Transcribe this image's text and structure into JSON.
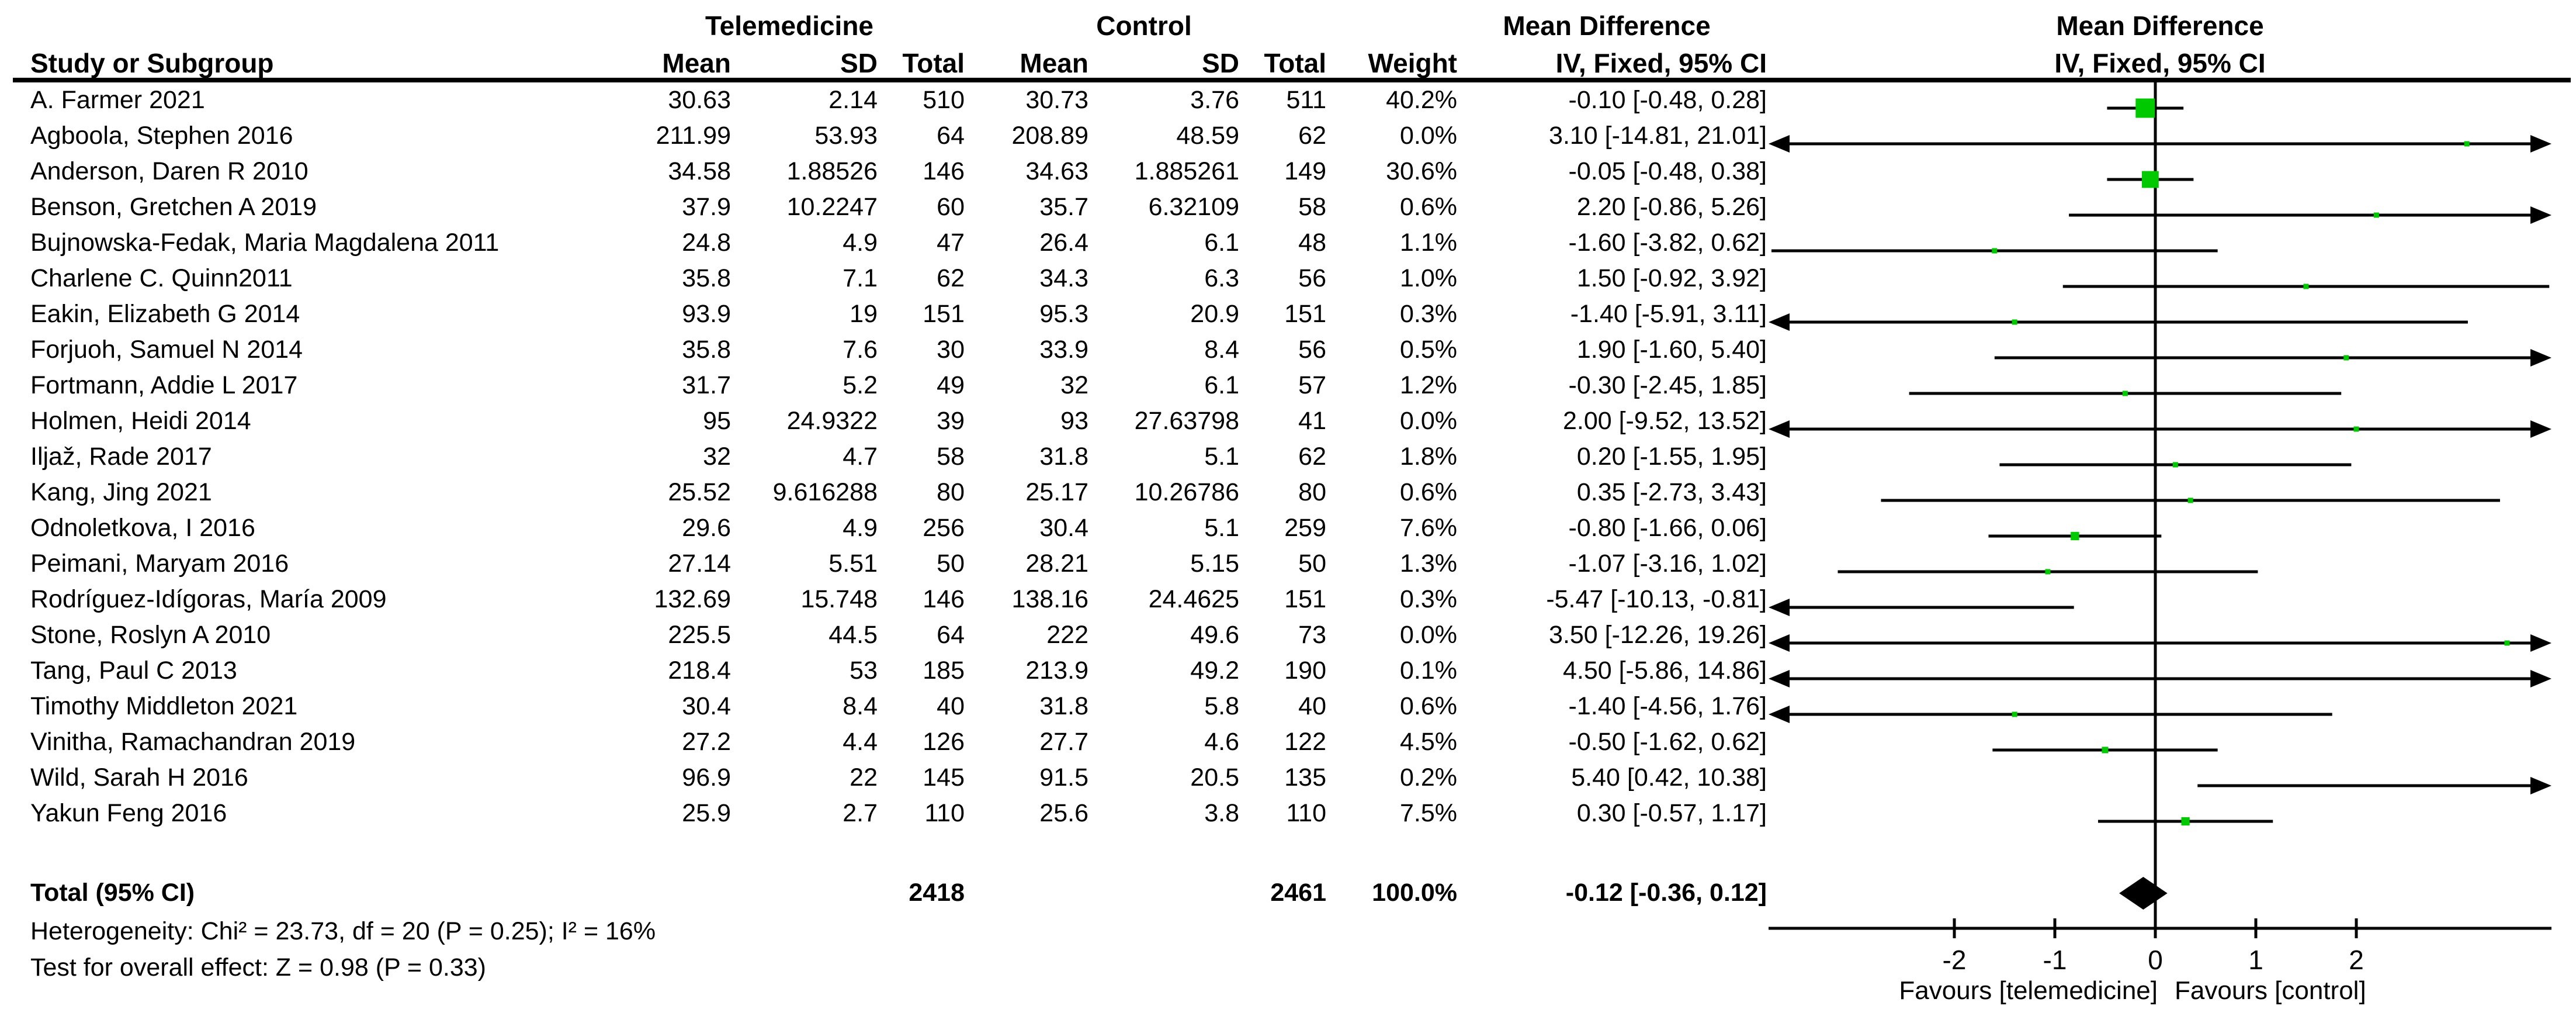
{
  "chart_data": {
    "type": "forest",
    "title": {
      "left_group": "Telemedicine",
      "right_group": "Control",
      "effect_label": "Mean Difference",
      "effect_model": "IV, Fixed, 95% CI"
    },
    "columns": [
      "Study or Subgroup",
      "Mean",
      "SD",
      "Total",
      "Mean",
      "SD",
      "Total",
      "Weight",
      "IV, Fixed, 95% CI",
      "IV, Fixed, 95% CI"
    ],
    "studies": [
      {
        "name": "A. Farmer 2021",
        "mean1": "30.63",
        "sd1": "2.14",
        "total1": "510",
        "mean2": "30.73",
        "sd2": "3.76",
        "total2": "511",
        "weight": "40.2%",
        "w": 40.2,
        "md": -0.1,
        "lo": -0.48,
        "hi": 0.28,
        "ci_text": "-0.10 [-0.48, 0.28]"
      },
      {
        "name": "Agboola, Stephen 2016",
        "mean1": "211.99",
        "sd1": "53.93",
        "total1": "64",
        "mean2": "208.89",
        "sd2": "48.59",
        "total2": "62",
        "weight": "0.0%",
        "w": 0.0,
        "md": 3.1,
        "lo": -14.81,
        "hi": 21.01,
        "ci_text": "3.10 [-14.81, 21.01]"
      },
      {
        "name": "Anderson, Daren R 2010",
        "mean1": "34.58",
        "sd1": "1.88526",
        "total1": "146",
        "mean2": "34.63",
        "sd2": "1.885261",
        "total2": "149",
        "weight": "30.6%",
        "w": 30.6,
        "md": -0.05,
        "lo": -0.48,
        "hi": 0.38,
        "ci_text": "-0.05 [-0.48, 0.38]"
      },
      {
        "name": "Benson, Gretchen A 2019",
        "mean1": "37.9",
        "sd1": "10.2247",
        "total1": "60",
        "mean2": "35.7",
        "sd2": "6.32109",
        "total2": "58",
        "weight": "0.6%",
        "w": 0.6,
        "md": 2.2,
        "lo": -0.86,
        "hi": 5.26,
        "ci_text": "2.20 [-0.86, 5.26]"
      },
      {
        "name": "Bujnowska-Fedak, Maria Magdalena 2011",
        "mean1": "24.8",
        "sd1": "4.9",
        "total1": "47",
        "mean2": "26.4",
        "sd2": "6.1",
        "total2": "48",
        "weight": "1.1%",
        "w": 1.1,
        "md": -1.6,
        "lo": -3.82,
        "hi": 0.62,
        "ci_text": "-1.60 [-3.82, 0.62]"
      },
      {
        "name": "Charlene C. Quinn2011",
        "mean1": "35.8",
        "sd1": "7.1",
        "total1": "62",
        "mean2": "34.3",
        "sd2": "6.3",
        "total2": "56",
        "weight": "1.0%",
        "w": 1.0,
        "md": 1.5,
        "lo": -0.92,
        "hi": 3.92,
        "ci_text": "1.50 [-0.92, 3.92]"
      },
      {
        "name": "Eakin, Elizabeth G 2014",
        "mean1": "93.9",
        "sd1": "19",
        "total1": "151",
        "mean2": "95.3",
        "sd2": "20.9",
        "total2": "151",
        "weight": "0.3%",
        "w": 0.3,
        "md": -1.4,
        "lo": -5.91,
        "hi": 3.11,
        "ci_text": "-1.40 [-5.91, 3.11]"
      },
      {
        "name": "Forjuoh, Samuel N 2014",
        "mean1": "35.8",
        "sd1": "7.6",
        "total1": "30",
        "mean2": "33.9",
        "sd2": "8.4",
        "total2": "56",
        "weight": "0.5%",
        "w": 0.5,
        "md": 1.9,
        "lo": -1.6,
        "hi": 5.4,
        "ci_text": "1.90 [-1.60, 5.40]"
      },
      {
        "name": "Fortmann, Addie L 2017",
        "mean1": "31.7",
        "sd1": "5.2",
        "total1": "49",
        "mean2": "32",
        "sd2": "6.1",
        "total2": "57",
        "weight": "1.2%",
        "w": 1.2,
        "md": -0.3,
        "lo": -2.45,
        "hi": 1.85,
        "ci_text": "-0.30 [-2.45, 1.85]"
      },
      {
        "name": "Holmen, Heidi 2014",
        "mean1": "95",
        "sd1": "24.9322",
        "total1": "39",
        "mean2": "93",
        "sd2": "27.63798",
        "total2": "41",
        "weight": "0.0%",
        "w": 0.0,
        "md": 2.0,
        "lo": -9.52,
        "hi": 13.52,
        "ci_text": "2.00 [-9.52, 13.52]"
      },
      {
        "name": "Iljaž, Rade 2017",
        "mean1": "32",
        "sd1": "4.7",
        "total1": "58",
        "mean2": "31.8",
        "sd2": "5.1",
        "total2": "62",
        "weight": "1.8%",
        "w": 1.8,
        "md": 0.2,
        "lo": -1.55,
        "hi": 1.95,
        "ci_text": "0.20 [-1.55, 1.95]"
      },
      {
        "name": "Kang, Jing 2021",
        "mean1": "25.52",
        "sd1": "9.616288",
        "total1": "80",
        "mean2": "25.17",
        "sd2": "10.26786",
        "total2": "80",
        "weight": "0.6%",
        "w": 0.6,
        "md": 0.35,
        "lo": -2.73,
        "hi": 3.43,
        "ci_text": "0.35 [-2.73, 3.43]"
      },
      {
        "name": "Odnoletkova, I 2016",
        "mean1": "29.6",
        "sd1": "4.9",
        "total1": "256",
        "mean2": "30.4",
        "sd2": "5.1",
        "total2": "259",
        "weight": "7.6%",
        "w": 7.6,
        "md": -0.8,
        "lo": -1.66,
        "hi": 0.06,
        "ci_text": "-0.80 [-1.66, 0.06]"
      },
      {
        "name": "Peimani, Maryam 2016",
        "mean1": "27.14",
        "sd1": "5.51",
        "total1": "50",
        "mean2": "28.21",
        "sd2": "5.15",
        "total2": "50",
        "weight": "1.3%",
        "w": 1.3,
        "md": -1.07,
        "lo": -3.16,
        "hi": 1.02,
        "ci_text": "-1.07 [-3.16, 1.02]"
      },
      {
        "name": "Rodríguez-Idígoras, María 2009",
        "mean1": "132.69",
        "sd1": "15.748",
        "total1": "146",
        "mean2": "138.16",
        "sd2": "24.4625",
        "total2": "151",
        "weight": "0.3%",
        "w": 0.3,
        "md": -5.47,
        "lo": -10.13,
        "hi": -0.81,
        "ci_text": "-5.47 [-10.13, -0.81]"
      },
      {
        "name": "Stone, Roslyn A 2010",
        "mean1": "225.5",
        "sd1": "44.5",
        "total1": "64",
        "mean2": "222",
        "sd2": "49.6",
        "total2": "73",
        "weight": "0.0%",
        "w": 0.0,
        "md": 3.5,
        "lo": -12.26,
        "hi": 19.26,
        "ci_text": "3.50 [-12.26, 19.26]"
      },
      {
        "name": "Tang, Paul C 2013",
        "mean1": "218.4",
        "sd1": "53",
        "total1": "185",
        "mean2": "213.9",
        "sd2": "49.2",
        "total2": "190",
        "weight": "0.1%",
        "w": 0.1,
        "md": 4.5,
        "lo": -5.86,
        "hi": 14.86,
        "ci_text": "4.50 [-5.86, 14.86]"
      },
      {
        "name": "Timothy Middleton 2021",
        "mean1": "30.4",
        "sd1": "8.4",
        "total1": "40",
        "mean2": "31.8",
        "sd2": "5.8",
        "total2": "40",
        "weight": "0.6%",
        "w": 0.6,
        "md": -1.4,
        "lo": -4.56,
        "hi": 1.76,
        "ci_text": "-1.40 [-4.56, 1.76]"
      },
      {
        "name": "Vinitha, Ramachandran 2019",
        "mean1": "27.2",
        "sd1": "4.4",
        "total1": "126",
        "mean2": "27.7",
        "sd2": "4.6",
        "total2": "122",
        "weight": "4.5%",
        "w": 4.5,
        "md": -0.5,
        "lo": -1.62,
        "hi": 0.62,
        "ci_text": "-0.50 [-1.62, 0.62]"
      },
      {
        "name": "Wild, Sarah H 2016",
        "mean1": "96.9",
        "sd1": "22",
        "total1": "145",
        "mean2": "91.5",
        "sd2": "20.5",
        "total2": "135",
        "weight": "0.2%",
        "w": 0.2,
        "md": 5.4,
        "lo": 0.42,
        "hi": 10.38,
        "ci_text": "5.40 [0.42, 10.38]"
      },
      {
        "name": "Yakun Feng 2016",
        "mean1": "25.9",
        "sd1": "2.7",
        "total1": "110",
        "mean2": "25.6",
        "sd2": "3.8",
        "total2": "110",
        "weight": "7.5%",
        "w": 7.5,
        "md": 0.3,
        "lo": -0.57,
        "hi": 1.17,
        "ci_text": "0.30 [-0.57, 1.17]"
      }
    ],
    "total": {
      "label": "Total (95% CI)",
      "t_total": "2418",
      "c_total": "2461",
      "weight": "100.0%",
      "md": -0.12,
      "lo": -0.36,
      "hi": 0.12,
      "ci_text": "-0.12 [-0.36, 0.12]"
    },
    "heterogeneity": "Heterogeneity: Chi² = 23.73, df = 20 (P = 0.25); I² = 16%",
    "overall_effect": "Test for overall effect: Z = 0.98 (P = 0.33)",
    "axis": {
      "ticks": [
        -2,
        -1,
        0,
        1,
        2
      ],
      "range": [
        -3.9,
        3.9
      ],
      "favours_left": "Favours [telemedicine]",
      "favours_right": "Favours [control]"
    },
    "colors": {
      "square": "#00C900",
      "line": "#000000",
      "diamond": "#000000"
    }
  }
}
